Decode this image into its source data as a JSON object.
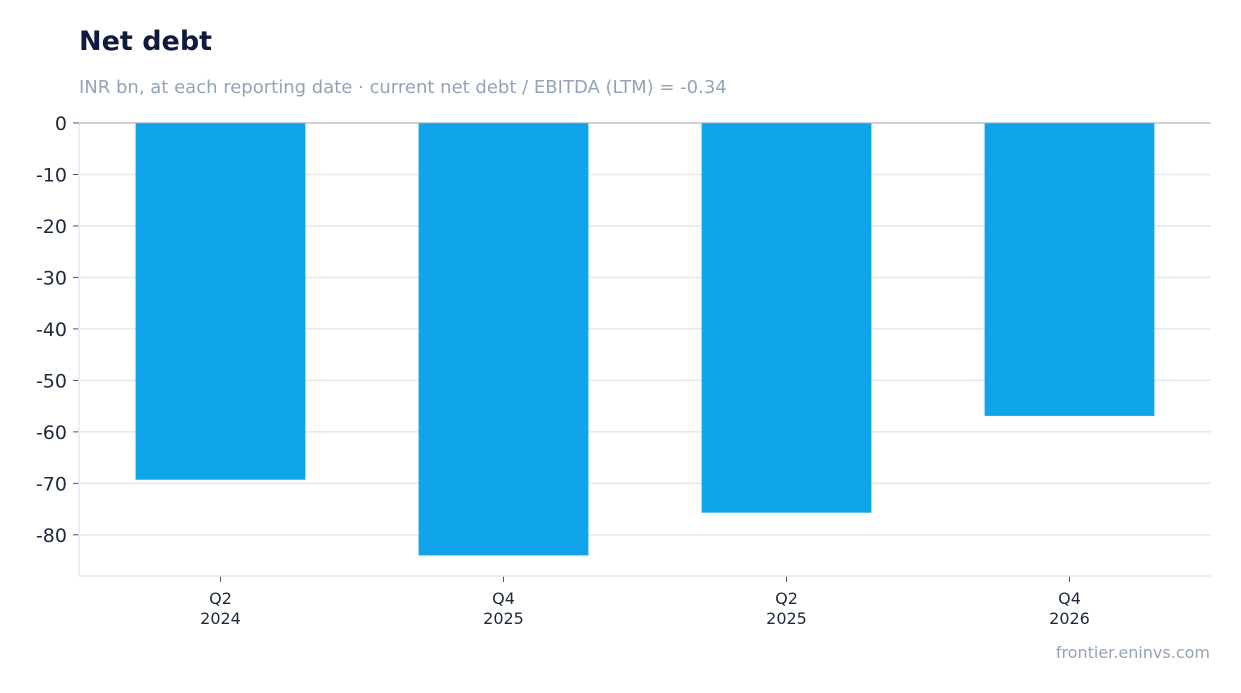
{
  "header": {
    "title": "Net debt",
    "subtitle": "INR bn, at each reporting date · current net debt / EBITDA (LTM) = -0.34"
  },
  "footer": {
    "source": "frontier.eninvs.com"
  },
  "colors": {
    "bar": "#10a5e8",
    "grid": "#e2e8f0",
    "zero_line": "#94a3b8",
    "axis": "#e2e8f0"
  },
  "chart_data": {
    "type": "bar",
    "title": "Net debt",
    "subtitle": "INR bn, at each reporting date · current net debt / EBITDA (LTM) = -0.34",
    "categories": [
      [
        "Q2",
        "2024"
      ],
      [
        "Q4",
        "2025"
      ],
      [
        "Q2",
        "2025"
      ],
      [
        "Q4",
        "2026"
      ]
    ],
    "values": [
      -69.3,
      -84.0,
      -75.7,
      -56.9
    ],
    "ylim": [
      -88,
      0
    ],
    "yticks": [
      0,
      -10,
      -20,
      -30,
      -40,
      -50,
      -60,
      -70,
      -80
    ],
    "xlabel": "",
    "ylabel": "",
    "grid": true,
    "legend": "none"
  }
}
